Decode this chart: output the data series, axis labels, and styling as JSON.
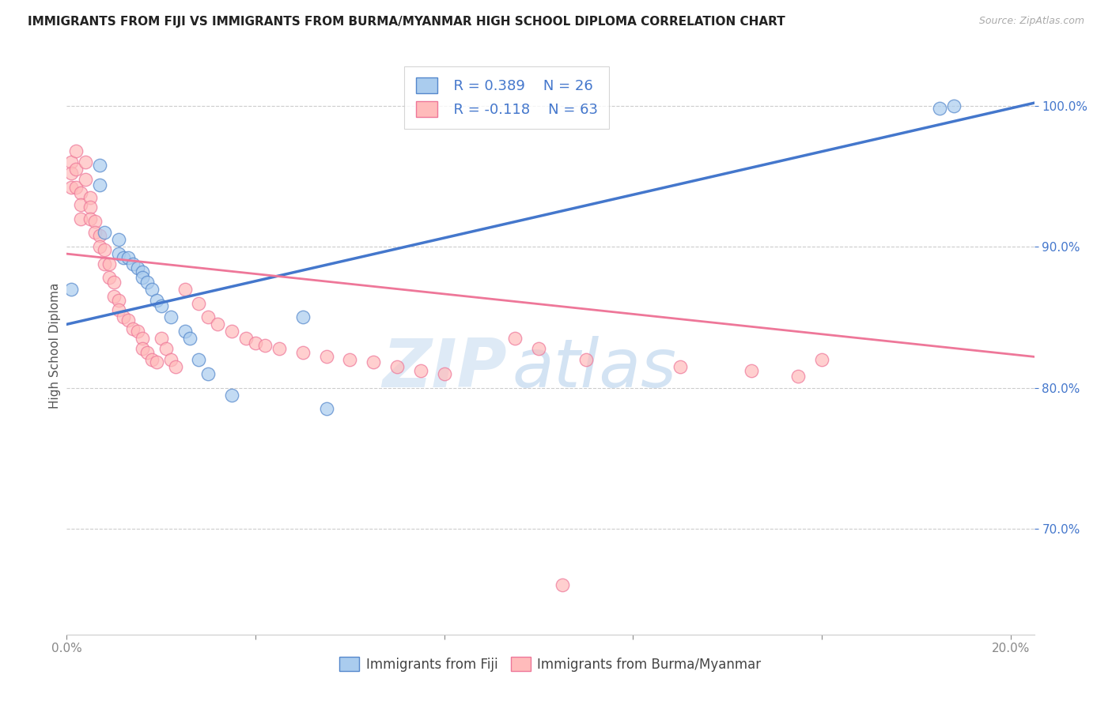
{
  "title": "IMMIGRANTS FROM FIJI VS IMMIGRANTS FROM BURMA/MYANMAR HIGH SCHOOL DIPLOMA CORRELATION CHART",
  "source": "Source: ZipAtlas.com",
  "ylabel": "High School Diploma",
  "x_min": 0.0,
  "x_max": 0.205,
  "y_min": 0.625,
  "y_max": 1.035,
  "x_ticks": [
    0.0,
    0.04,
    0.08,
    0.12,
    0.16,
    0.2
  ],
  "y_ticks": [
    0.7,
    0.8,
    0.9,
    1.0
  ],
  "y_tick_labels": [
    "70.0%",
    "80.0%",
    "90.0%",
    "100.0%"
  ],
  "fiji_color": "#AACCEE",
  "burma_color": "#FFBBBB",
  "fiji_edge_color": "#5588CC",
  "burma_edge_color": "#EE7799",
  "fiji_line_color": "#4477CC",
  "burma_line_color": "#EE7799",
  "legend_fiji_R": "R = 0.389",
  "legend_fiji_N": "N = 26",
  "legend_burma_R": "R = -0.118",
  "legend_burma_N": "N = 63",
  "watermark_zip": "ZIP",
  "watermark_atlas": "atlas",
  "fiji_scatter_x": [
    0.001,
    0.007,
    0.007,
    0.008,
    0.011,
    0.011,
    0.012,
    0.013,
    0.014,
    0.015,
    0.016,
    0.016,
    0.017,
    0.018,
    0.019,
    0.02,
    0.022,
    0.025,
    0.026,
    0.028,
    0.03,
    0.035,
    0.05,
    0.055,
    0.185,
    0.188
  ],
  "fiji_scatter_y": [
    0.87,
    0.958,
    0.944,
    0.91,
    0.905,
    0.895,
    0.892,
    0.892,
    0.888,
    0.885,
    0.882,
    0.878,
    0.875,
    0.87,
    0.862,
    0.858,
    0.85,
    0.84,
    0.835,
    0.82,
    0.81,
    0.795,
    0.85,
    0.785,
    0.998,
    1.0
  ],
  "burma_scatter_x": [
    0.001,
    0.001,
    0.001,
    0.002,
    0.002,
    0.002,
    0.003,
    0.003,
    0.003,
    0.004,
    0.004,
    0.005,
    0.005,
    0.005,
    0.006,
    0.006,
    0.007,
    0.007,
    0.008,
    0.008,
    0.009,
    0.009,
    0.01,
    0.01,
    0.011,
    0.011,
    0.012,
    0.013,
    0.014,
    0.015,
    0.016,
    0.016,
    0.017,
    0.018,
    0.019,
    0.02,
    0.021,
    0.022,
    0.023,
    0.025,
    0.028,
    0.03,
    0.032,
    0.035,
    0.038,
    0.04,
    0.042,
    0.045,
    0.05,
    0.055,
    0.06,
    0.065,
    0.07,
    0.075,
    0.08,
    0.095,
    0.1,
    0.11,
    0.13,
    0.145,
    0.155,
    0.16,
    0.105
  ],
  "burma_scatter_y": [
    0.96,
    0.952,
    0.942,
    0.968,
    0.955,
    0.942,
    0.938,
    0.93,
    0.92,
    0.96,
    0.948,
    0.935,
    0.928,
    0.92,
    0.918,
    0.91,
    0.908,
    0.9,
    0.898,
    0.888,
    0.888,
    0.878,
    0.875,
    0.865,
    0.862,
    0.855,
    0.85,
    0.848,
    0.842,
    0.84,
    0.835,
    0.828,
    0.825,
    0.82,
    0.818,
    0.835,
    0.828,
    0.82,
    0.815,
    0.87,
    0.86,
    0.85,
    0.845,
    0.84,
    0.835,
    0.832,
    0.83,
    0.828,
    0.825,
    0.822,
    0.82,
    0.818,
    0.815,
    0.812,
    0.81,
    0.835,
    0.828,
    0.82,
    0.815,
    0.812,
    0.808,
    0.82,
    0.66
  ],
  "fiji_line_x": [
    0.0,
    0.205
  ],
  "fiji_line_y": [
    0.845,
    1.002
  ],
  "burma_line_x": [
    0.0,
    0.205
  ],
  "burma_line_y": [
    0.895,
    0.822
  ]
}
